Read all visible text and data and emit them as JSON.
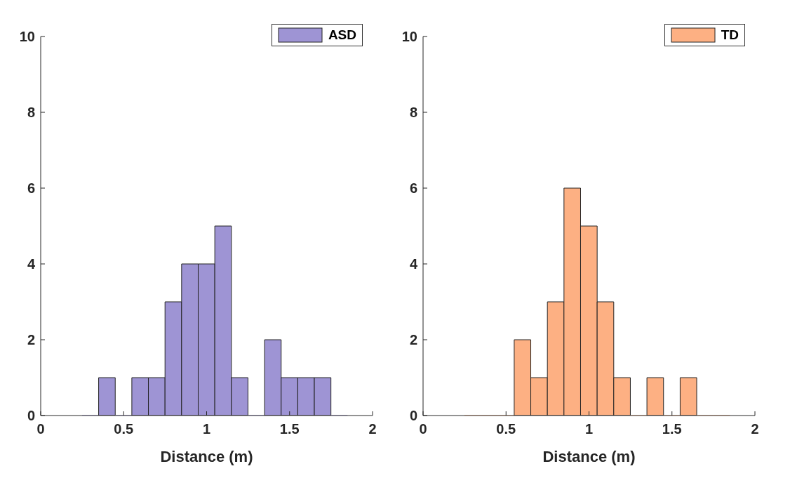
{
  "chart_data": [
    {
      "type": "histogram",
      "xlabel": "Distance (m)",
      "legend": "top right",
      "bins": [
        0.25,
        0.35,
        0.45,
        0.55,
        0.65,
        0.75,
        0.85,
        0.95,
        1.05,
        1.15,
        1.25,
        1.35,
        1.45,
        1.55,
        1.65,
        1.75,
        1.85
      ],
      "series": [
        {
          "name": "ASD",
          "color": "#9e94d4",
          "values": [
            0,
            1,
            0,
            1,
            1,
            3,
            4,
            4,
            5,
            1,
            0,
            2,
            1,
            1,
            1,
            0
          ]
        }
      ],
      "xlim": [
        0,
        2
      ],
      "xticks": [
        0,
        0.5,
        1,
        1.5,
        2
      ],
      "ylim": [
        0,
        10
      ],
      "yticks": [
        0,
        2,
        4,
        6,
        8,
        10
      ]
    },
    {
      "type": "histogram",
      "xlabel": "Distance (m)",
      "legend": "top right",
      "bins": [
        0.25,
        0.35,
        0.45,
        0.55,
        0.65,
        0.75,
        0.85,
        0.95,
        1.05,
        1.15,
        1.25,
        1.35,
        1.45,
        1.55,
        1.65,
        1.75,
        1.85
      ],
      "series": [
        {
          "name": "TD",
          "color": "#fdb083",
          "values": [
            0,
            0,
            0,
            2,
            1,
            3,
            6,
            5,
            3,
            1,
            0,
            1,
            0,
            1,
            0,
            0
          ]
        }
      ],
      "xlim": [
        0,
        2
      ],
      "xticks": [
        0,
        0.5,
        1,
        1.5,
        2
      ],
      "ylim": [
        0,
        10
      ],
      "yticks": [
        0,
        2,
        4,
        6,
        8,
        10
      ]
    }
  ]
}
